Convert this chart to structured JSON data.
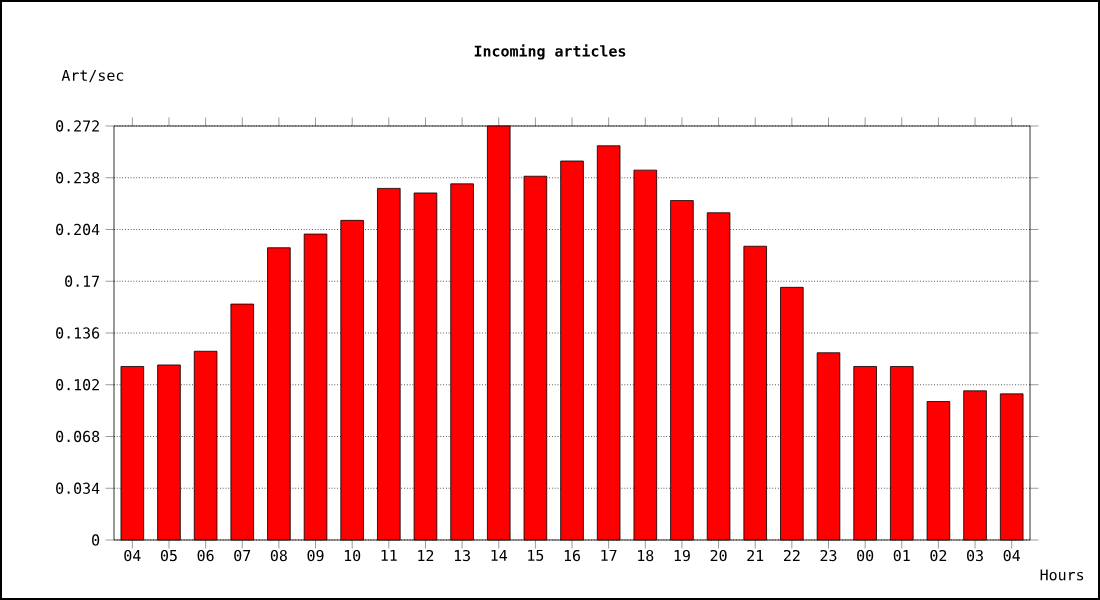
{
  "chart_data": {
    "type": "bar",
    "title": "Incoming articles",
    "ylabel": "Art/sec",
    "xlabel": "Hours",
    "categories": [
      "04",
      "05",
      "06",
      "07",
      "08",
      "09",
      "10",
      "11",
      "12",
      "13",
      "14",
      "15",
      "16",
      "17",
      "18",
      "19",
      "20",
      "21",
      "22",
      "23",
      "00",
      "01",
      "02",
      "03",
      "04"
    ],
    "values": [
      0.114,
      0.115,
      0.124,
      0.155,
      0.192,
      0.201,
      0.21,
      0.231,
      0.228,
      0.234,
      0.272,
      0.239,
      0.249,
      0.259,
      0.243,
      0.223,
      0.215,
      0.193,
      0.166,
      0.123,
      0.114,
      0.114,
      0.091,
      0.098,
      0.096
    ],
    "color": "#ff0000",
    "ylim": [
      0,
      0.272
    ],
    "yticks": [
      0,
      0.034,
      0.068,
      0.102,
      0.136,
      0.17,
      0.204,
      0.238,
      0.272
    ],
    "grid": "y"
  }
}
